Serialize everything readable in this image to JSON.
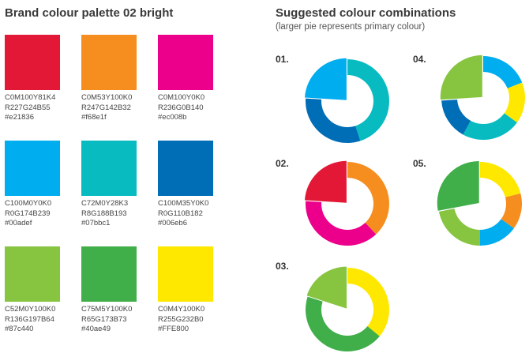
{
  "palette": {
    "title": "Brand colour palette 02 bright",
    "swatches": [
      {
        "cmyk": "C0M100Y81K4",
        "rgb": "R227G24B55",
        "hex": "#e21836",
        "color": "#e21836"
      },
      {
        "cmyk": "C0M53Y100K0",
        "rgb": "R247G142B32",
        "hex": "#f68e1f",
        "color": "#f68e1f"
      },
      {
        "cmyk": "C0M100Y0K0",
        "rgb": "R236G0B140",
        "hex": "#ec008b",
        "color": "#ec008b"
      },
      {
        "cmyk": "C100M0Y0K0",
        "rgb": "R0G174B239",
        "hex": "#00adef",
        "color": "#00adef"
      },
      {
        "cmyk": "C72M0Y28K3",
        "rgb": "R8G188B193",
        "hex": "#07bbc1",
        "color": "#07bbc1"
      },
      {
        "cmyk": "C100M35Y0K0",
        "rgb": "R0G110B182",
        "hex": "#006eb6",
        "color": "#006eb6"
      },
      {
        "cmyk": "C52M0Y100K0",
        "rgb": "R136G197B64",
        "hex": "#87c440",
        "color": "#87c440"
      },
      {
        "cmyk": "C75M5Y100K0",
        "rgb": "R65G173B73",
        "hex": "#40ae49",
        "color": "#40ae49"
      },
      {
        "cmyk": "C0M4Y100K0",
        "rgb": "R255G232B0",
        "hex": "#FFE800",
        "color": "#FFE800"
      }
    ]
  },
  "combinations": {
    "title": "Suggested colour combinations",
    "subtitle": "(larger pie represents primary colour)",
    "items": [
      {
        "label": "01.",
        "primary": "#07bbc1",
        "slices": [
          {
            "color": "#07bbc1",
            "share": 0.45
          },
          {
            "color": "#006eb6",
            "share": 0.31
          },
          {
            "color": "#00adef",
            "share": 0.24
          }
        ],
        "exploded": 2
      },
      {
        "label": "04.",
        "primary": "#87c440",
        "slices": [
          {
            "color": "#00adef",
            "share": 0.19
          },
          {
            "color": "#FFE800",
            "share": 0.16
          },
          {
            "color": "#07bbc1",
            "share": 0.23
          },
          {
            "color": "#006eb6",
            "share": 0.16
          },
          {
            "color": "#87c440",
            "share": 0.26
          }
        ],
        "exploded": 4
      },
      {
        "label": "02.",
        "primary": "#e21836",
        "slices": [
          {
            "color": "#f68e1f",
            "share": 0.38
          },
          {
            "color": "#ec008b",
            "share": 0.38
          },
          {
            "color": "#e21836",
            "share": 0.24
          }
        ],
        "exploded": 2
      },
      {
        "label": "05.",
        "primary": "#40ae49",
        "slices": [
          {
            "color": "#FFE800",
            "share": 0.21
          },
          {
            "color": "#f68e1f",
            "share": 0.14
          },
          {
            "color": "#00adef",
            "share": 0.15
          },
          {
            "color": "#87c440",
            "share": 0.22
          },
          {
            "color": "#40ae49",
            "share": 0.28
          }
        ],
        "exploded": 4
      },
      {
        "label": "03.",
        "primary": "#87c440",
        "slices": [
          {
            "color": "#FFE800",
            "share": 0.36
          },
          {
            "color": "#40ae49",
            "share": 0.44
          },
          {
            "color": "#87c440",
            "share": 0.2
          }
        ],
        "exploded": 2
      }
    ]
  }
}
